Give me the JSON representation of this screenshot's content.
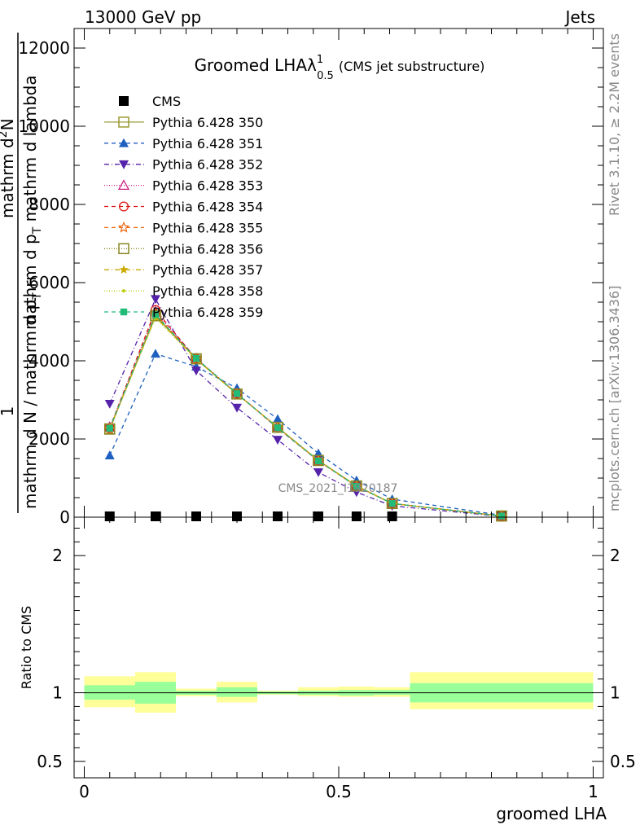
{
  "header": {
    "left": "13000 GeV pp",
    "right": "Jets"
  },
  "side_labels": {
    "rivet": "Rivet 3.1.10, ≥ 2.2M events",
    "mcplots": "mcplots.cern.ch [arXiv:1306.3436]"
  },
  "watermark": "CMS_2021_I1920187",
  "chart_data": [
    {
      "type": "line",
      "title": "Groomed LHAλ",
      "title_sup": "1",
      "title_sub": "0.5",
      "title_note": "(CMS jet substructure)",
      "xlabel": "groomed LHA",
      "ylabel": {
        "numerator": "1",
        "denominator": "mathrm d N / mathrm d p",
        "denominator_sub": "T",
        "right_numerator": "mathrm d",
        "right_numerator_sup": "2",
        "right_numerator_end": "N",
        "right_denominator": "mathrm d p",
        "right_denominator_sub": "T",
        "right_denominator_end": " mathrm d lambda"
      },
      "xlim": [
        -0.02,
        1.02
      ],
      "ylim": [
        0,
        12500
      ],
      "y_ticks": [
        0,
        2000,
        4000,
        6000,
        8000,
        10000,
        12000
      ],
      "x": [
        0.05,
        0.14,
        0.22,
        0.3,
        0.38,
        0.46,
        0.535,
        0.605,
        0.82
      ],
      "x_edges": [
        0.0,
        0.1,
        0.18,
        0.26,
        0.34,
        0.42,
        0.5,
        0.57,
        0.64,
        1.0
      ],
      "series": [
        {
          "name": "CMS",
          "color": "#000000",
          "marker": "square-filled",
          "dash": "none",
          "values": [
            0,
            0,
            0,
            0,
            0,
            0,
            0,
            0,
            0
          ]
        },
        {
          "name": "Pythia 6.428 350",
          "color": "#999933",
          "marker": "square-open",
          "dash": "solid",
          "values": [
            2250,
            5150,
            4050,
            3150,
            2300,
            1450,
            800,
            350,
            30
          ]
        },
        {
          "name": "Pythia 6.428 351",
          "color": "#1f5fbf",
          "marker": "triangle-up-filled",
          "dash": "5,4",
          "values": [
            1580,
            4180,
            3850,
            3300,
            2510,
            1630,
            940,
            460,
            50
          ]
        },
        {
          "name": "Pythia 6.428 352",
          "color": "#5522aa",
          "marker": "triangle-down-filled",
          "dash": "6,3,1,3",
          "values": [
            2900,
            5580,
            3750,
            2800,
            1980,
            1150,
            640,
            290,
            20
          ]
        },
        {
          "name": "Pythia 6.428 353",
          "color": "#cc2288",
          "marker": "triangle-up-open",
          "dash": "1,2",
          "values": [
            2300,
            5250,
            4060,
            3170,
            2290,
            1440,
            790,
            350,
            30
          ]
        },
        {
          "name": "Pythia 6.428 354",
          "color": "#dd1111",
          "marker": "circle-open",
          "dash": "5,4",
          "values": [
            2280,
            5300,
            4050,
            3160,
            2280,
            1440,
            790,
            350,
            30
          ]
        },
        {
          "name": "Pythia 6.428 355",
          "color": "#ee6611",
          "marker": "star-open",
          "dash": "5,4",
          "values": [
            2250,
            5200,
            4040,
            3160,
            2290,
            1440,
            790,
            350,
            30
          ]
        },
        {
          "name": "Pythia 6.428 356",
          "color": "#888822",
          "marker": "square-open",
          "dash": "1,2",
          "values": [
            2260,
            5160,
            4050,
            3150,
            2300,
            1450,
            800,
            350,
            30
          ]
        },
        {
          "name": "Pythia 6.428 357",
          "color": "#ccaa00",
          "marker": "star-small",
          "dash": "6,3,1,3",
          "values": [
            2270,
            5120,
            4040,
            3150,
            2300,
            1450,
            800,
            350,
            30
          ]
        },
        {
          "name": "Pythia 6.428 358",
          "color": "#bbcc00",
          "marker": "dot",
          "dash": "1,2",
          "values": [
            2270,
            5100,
            4030,
            3150,
            2300,
            1450,
            800,
            350,
            30
          ]
        },
        {
          "name": "Pythia 6.428 359",
          "color": "#22bb77",
          "marker": "square-filled-small",
          "dash": "5,4",
          "values": [
            2270,
            5180,
            4060,
            3160,
            2290,
            1440,
            790,
            350,
            30
          ]
        }
      ]
    },
    {
      "type": "area",
      "ylabel": "Ratio to CMS",
      "xlim": [
        -0.02,
        1.02
      ],
      "ylim": [
        0.38,
        2.28
      ],
      "y_ticks": [
        0.5,
        1,
        2
      ],
      "y_tick_labels": [
        "0.5",
        "1",
        "2"
      ],
      "x_ticks": [
        0,
        0.5,
        1
      ],
      "x_tick_labels": [
        "0",
        "0.5",
        "1"
      ],
      "x_edges": [
        0.0,
        0.1,
        0.18,
        0.26,
        0.34,
        0.42,
        0.5,
        0.57,
        0.64,
        1.0
      ],
      "band_outer": [
        [
          0.895,
          1.12
        ],
        [
          0.855,
          1.15
        ],
        [
          0.975,
          1.03
        ],
        [
          0.93,
          1.08
        ],
        [
          0.985,
          1.015
        ],
        [
          0.975,
          1.04
        ],
        [
          0.97,
          1.045
        ],
        [
          0.97,
          1.04
        ],
        [
          0.88,
          1.15
        ]
      ],
      "band_inner": [
        [
          0.95,
          1.055
        ],
        [
          0.92,
          1.08
        ],
        [
          0.985,
          1.015
        ],
        [
          0.97,
          1.04
        ],
        [
          0.99,
          1.01
        ],
        [
          0.985,
          1.015
        ],
        [
          0.98,
          1.02
        ],
        [
          0.985,
          1.02
        ],
        [
          0.93,
          1.07
        ]
      ],
      "colors": {
        "outer": "#ffff99",
        "inner": "#99ff99",
        "reference": "#000000"
      }
    }
  ]
}
